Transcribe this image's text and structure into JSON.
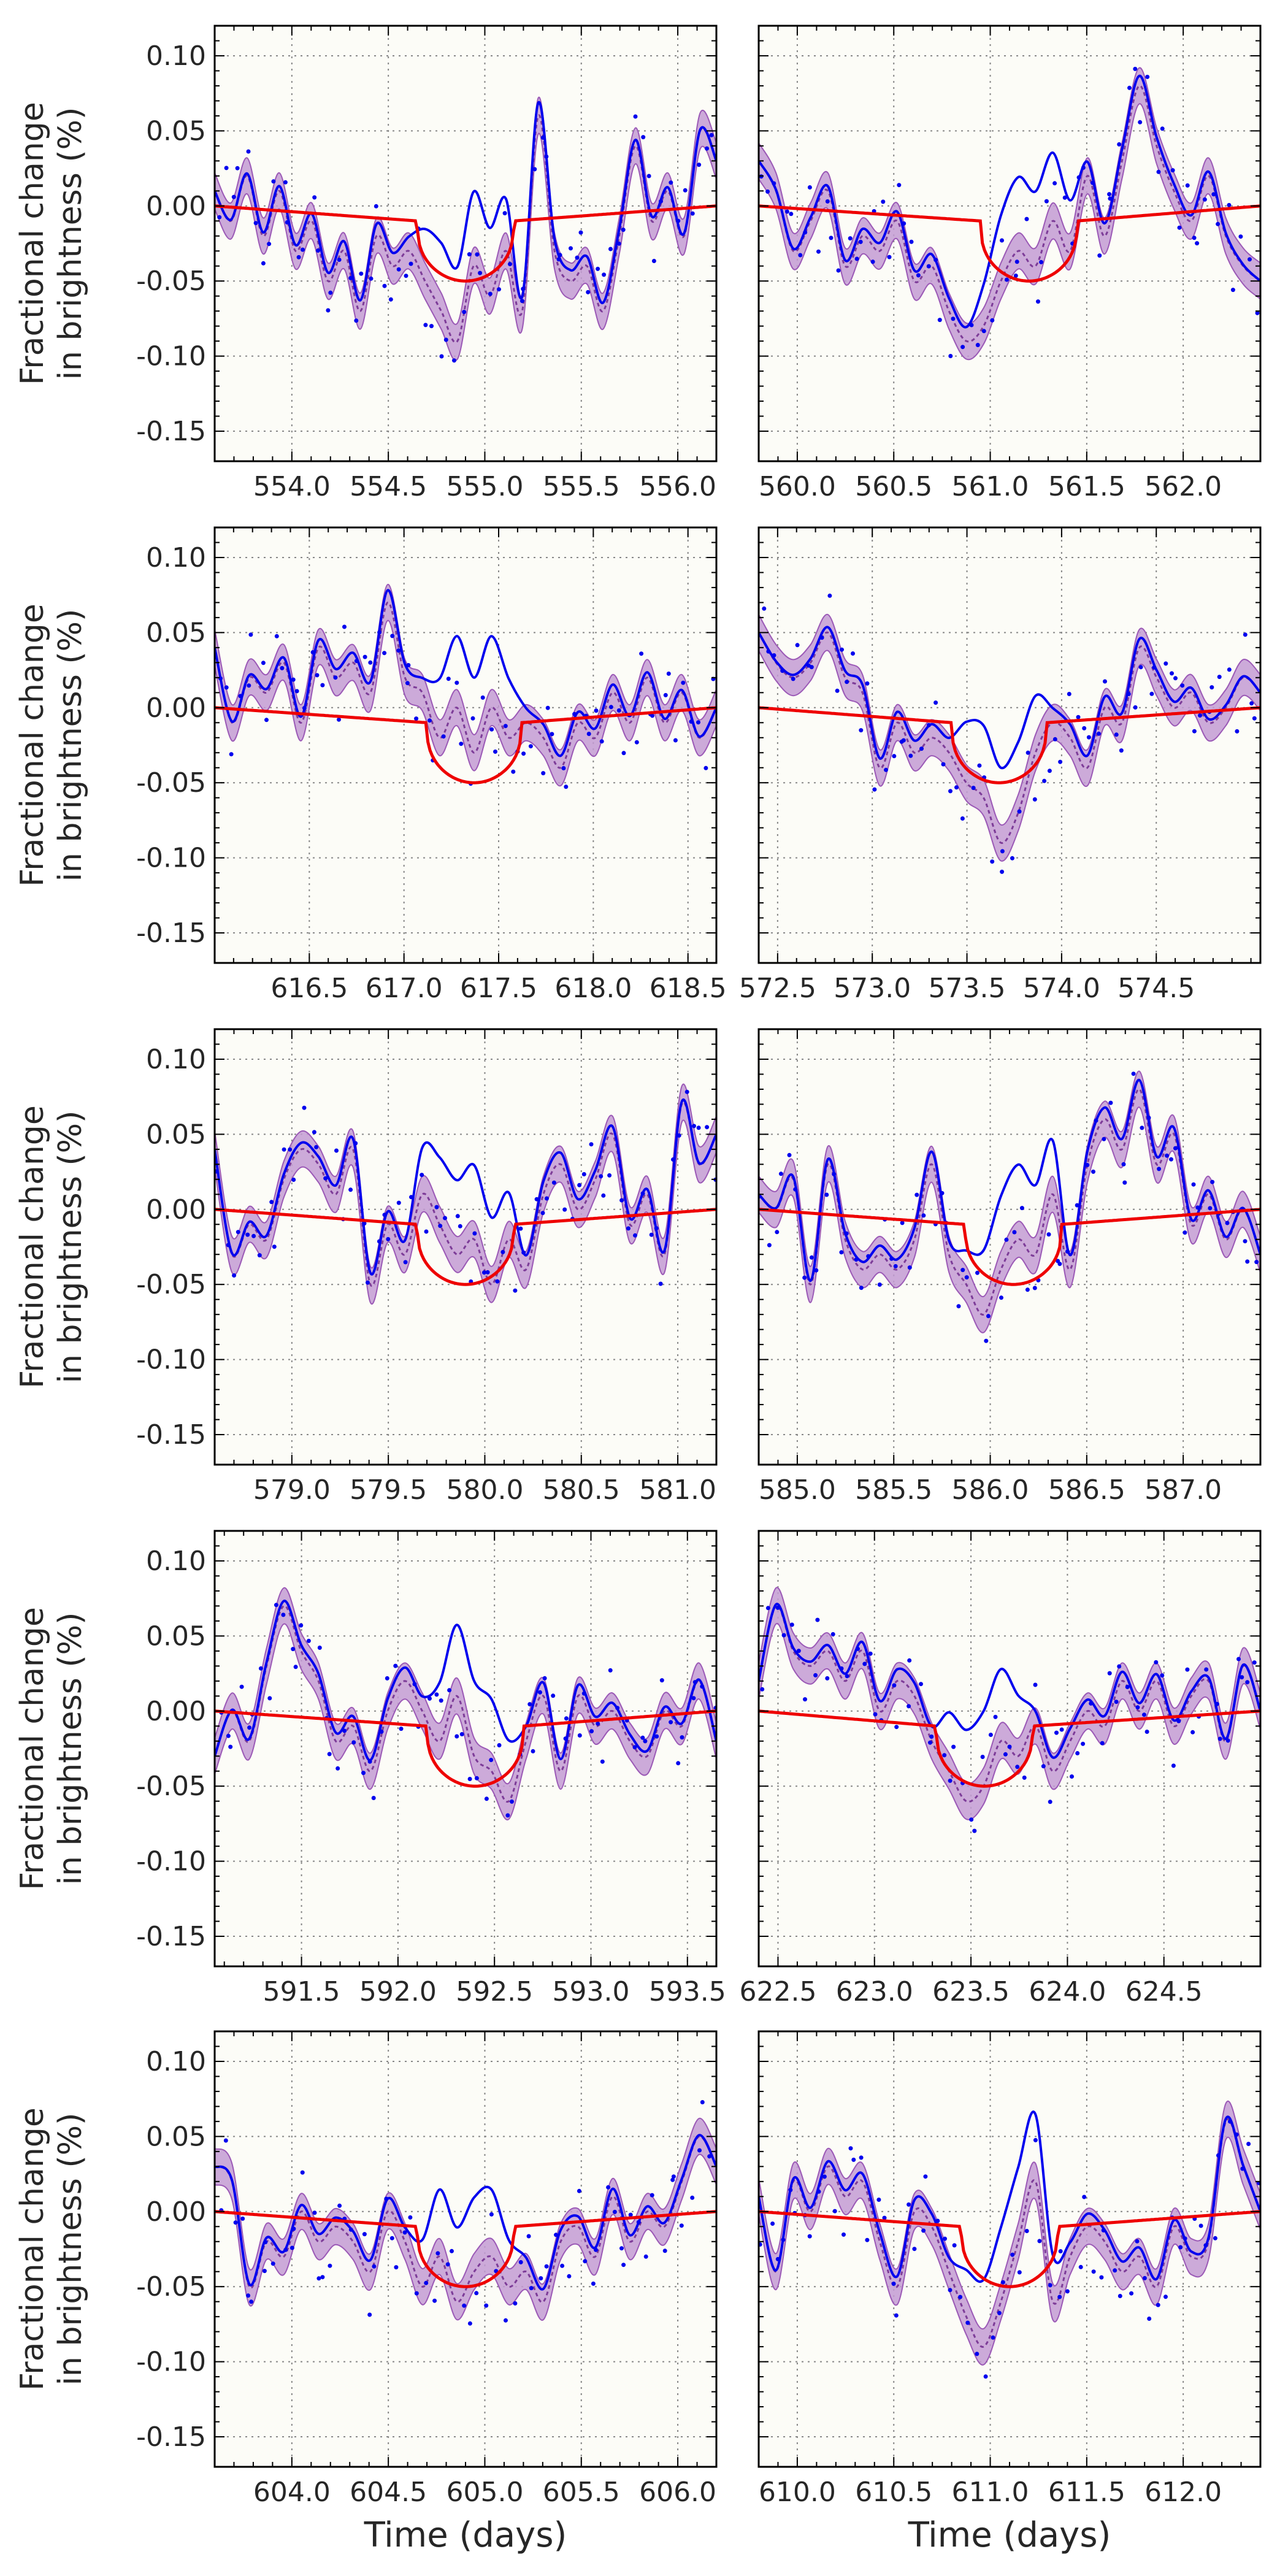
{
  "figure": {
    "ylabel_line1": "Fractional change",
    "ylabel_line2": "in brightness (%)",
    "xlabel": "Time (days)"
  },
  "colors": {
    "background": "#fcfcf7",
    "data": "#0000ee",
    "model": "#ee0000",
    "band_fill": "#c39bd3",
    "band_line": "#9b59b6",
    "grid": "#888888"
  },
  "chart_data": [
    {
      "type": "line",
      "xlim": [
        553.6,
        556.2
      ],
      "ylim": [
        -0.17,
        0.12
      ],
      "yticks": [
        0.1,
        0.05,
        0.0,
        -0.05,
        -0.1,
        -0.15
      ],
      "xticks": [
        554.0,
        554.5,
        555.0,
        555.5,
        556.0
      ],
      "xtick_labels": [
        "554.0",
        "554.5",
        "555.0",
        "555.5",
        "556.0"
      ],
      "transit": {
        "start": 554.65,
        "end": 555.15,
        "depth": -0.05,
        "baseline_start": 0.0,
        "baseline_end": -0.01,
        "baseline_tail": 0.0
      },
      "smooth_y": [
        0.01,
        -0.01,
        0.02,
        -0.02,
        0.01,
        -0.03,
        -0.01,
        -0.05,
        -0.03,
        -0.07,
        -0.02,
        -0.04,
        -0.03,
        -0.05,
        -0.07,
        -0.09,
        -0.04,
        -0.06,
        -0.03,
        -0.07,
        0.06,
        -0.03,
        -0.05,
        -0.04,
        -0.07,
        -0.02,
        0.04,
        -0.01,
        0.01,
        -0.02,
        0.05,
        0.03
      ]
    },
    {
      "type": "line",
      "xlim": [
        559.8,
        562.4
      ],
      "ylim": [
        -0.17,
        0.12
      ],
      "yticks": [
        0.1,
        0.05,
        0.0,
        -0.05,
        -0.1,
        -0.15
      ],
      "xticks": [
        560.0,
        560.5,
        561.0,
        561.5,
        562.0
      ],
      "xtick_labels": [
        "560.0",
        "560.5",
        "561.0",
        "561.5",
        "562.0"
      ],
      "transit": {
        "start": 560.95,
        "end": 561.45,
        "depth": -0.05,
        "baseline_start": 0.0,
        "baseline_end": -0.01,
        "baseline_tail": 0.0
      },
      "smooth_y": [
        0.03,
        0.01,
        -0.03,
        -0.01,
        0.01,
        -0.04,
        -0.02,
        -0.03,
        -0.01,
        -0.05,
        -0.04,
        -0.07,
        -0.09,
        -0.08,
        -0.05,
        -0.03,
        -0.04,
        -0.01,
        -0.03,
        0.02,
        -0.02,
        0.03,
        0.08,
        0.04,
        0.01,
        -0.01,
        0.02,
        -0.02,
        -0.04,
        -0.05
      ]
    },
    {
      "type": "line",
      "xlim": [
        616.0,
        618.65
      ],
      "ylim": [
        -0.17,
        0.12
      ],
      "yticks": [
        0.1,
        0.05,
        0.0,
        -0.05,
        -0.1,
        -0.15
      ],
      "xticks": [
        616.5,
        617.0,
        617.5,
        618.0,
        618.5
      ],
      "xtick_labels": [
        "616.5",
        "617.0",
        "617.5",
        "618.0",
        "618.5"
      ],
      "transit": {
        "start": 617.12,
        "end": 617.62,
        "depth": -0.05,
        "baseline_start": 0.0,
        "baseline_end": -0.01,
        "baseline_tail": 0.0
      },
      "smooth_y": [
        0.04,
        -0.01,
        0.02,
        0.01,
        0.03,
        -0.01,
        0.04,
        0.02,
        0.03,
        0.01,
        0.07,
        0.02,
        0.01,
        -0.02,
        0.0,
        -0.03,
        0.0,
        -0.02,
        -0.01,
        -0.02,
        -0.04,
        -0.01,
        -0.02,
        0.01,
        -0.01,
        0.02,
        -0.01,
        0.01,
        -0.02,
        0.0
      ]
    },
    {
      "type": "line",
      "xlim": [
        572.4,
        575.05
      ],
      "ylim": [
        -0.17,
        0.12
      ],
      "yticks": [
        0.1,
        0.05,
        0.0,
        -0.05,
        -0.1,
        -0.15
      ],
      "xticks": [
        572.5,
        573.0,
        573.5,
        574.0,
        574.5
      ],
      "xtick_labels": [
        "572.5",
        "573.0",
        "573.5",
        "574.0",
        "574.5"
      ],
      "transit": {
        "start": 573.42,
        "end": 573.92,
        "depth": -0.05,
        "baseline_start": 0.0,
        "baseline_end": -0.01,
        "baseline_tail": 0.0
      },
      "smooth_y": [
        0.05,
        0.03,
        0.02,
        0.03,
        0.05,
        0.02,
        0.01,
        -0.04,
        -0.01,
        -0.03,
        -0.02,
        -0.03,
        -0.05,
        -0.06,
        -0.09,
        -0.07,
        -0.03,
        -0.01,
        -0.02,
        -0.04,
        0.0,
        -0.01,
        0.04,
        0.02,
        0.0,
        0.01,
        -0.01,
        0.0,
        0.02,
        0.01
      ]
    },
    {
      "type": "line",
      "xlim": [
        578.6,
        581.2
      ],
      "ylim": [
        -0.17,
        0.12
      ],
      "yticks": [
        0.1,
        0.05,
        0.0,
        -0.05,
        -0.1,
        -0.15
      ],
      "xticks": [
        579.0,
        579.5,
        580.0,
        580.5,
        581.0
      ],
      "xtick_labels": [
        "579.0",
        "579.5",
        "580.0",
        "580.5",
        "581.0"
      ],
      "transit": {
        "start": 579.65,
        "end": 580.15,
        "depth": -0.05,
        "baseline_start": 0.0,
        "baseline_end": -0.01,
        "baseline_tail": 0.0
      },
      "smooth_y": [
        0.04,
        -0.03,
        -0.01,
        -0.02,
        0.02,
        0.04,
        0.03,
        0.01,
        0.04,
        -0.05,
        -0.01,
        -0.03,
        0.01,
        -0.01,
        -0.03,
        -0.02,
        -0.05,
        -0.02,
        -0.04,
        0.01,
        0.03,
        0.0,
        0.02,
        0.05,
        -0.01,
        0.01,
        -0.03,
        0.07,
        0.03,
        0.05
      ]
    },
    {
      "type": "line",
      "xlim": [
        584.8,
        587.4
      ],
      "ylim": [
        -0.17,
        0.12
      ],
      "yticks": [
        0.1,
        0.05,
        0.0,
        -0.05,
        -0.1,
        -0.15
      ],
      "xticks": [
        585.0,
        585.5,
        586.0,
        586.5,
        587.0
      ],
      "xtick_labels": [
        "585.0",
        "585.5",
        "586.0",
        "586.5",
        "587.0"
      ],
      "transit": {
        "start": 585.87,
        "end": 586.37,
        "depth": -0.05,
        "baseline_start": 0.0,
        "baseline_end": -0.01,
        "baseline_tail": 0.0
      },
      "smooth_y": [
        0.01,
        0.0,
        0.02,
        -0.05,
        0.03,
        -0.02,
        -0.04,
        -0.03,
        -0.04,
        -0.02,
        0.03,
        -0.03,
        -0.05,
        -0.07,
        -0.04,
        -0.02,
        -0.03,
        0.01,
        -0.04,
        0.03,
        0.06,
        0.04,
        0.08,
        0.03,
        0.05,
        -0.01,
        0.01,
        -0.02,
        0.0,
        -0.03
      ]
    },
    {
      "type": "line",
      "xlim": [
        591.05,
        593.65
      ],
      "ylim": [
        -0.17,
        0.12
      ],
      "yticks": [
        0.1,
        0.05,
        0.0,
        -0.05,
        -0.1,
        -0.15
      ],
      "xticks": [
        591.5,
        592.0,
        592.5,
        593.0,
        593.5
      ],
      "xtick_labels": [
        "591.5",
        "592.0",
        "592.5",
        "593.0",
        "593.5"
      ],
      "transit": {
        "start": 592.15,
        "end": 592.65,
        "depth": -0.05,
        "baseline_start": 0.0,
        "baseline_end": -0.01,
        "baseline_tail": 0.0
      },
      "smooth_y": [
        -0.03,
        0.0,
        -0.02,
        0.03,
        0.07,
        0.04,
        0.02,
        -0.02,
        -0.01,
        -0.04,
        0.0,
        0.02,
        0.0,
        -0.02,
        0.01,
        -0.03,
        -0.04,
        -0.06,
        -0.02,
        0.01,
        -0.04,
        0.01,
        -0.01,
        0.0,
        -0.02,
        -0.03,
        0.0,
        -0.01,
        0.02,
        -0.02
      ]
    },
    {
      "type": "line",
      "xlim": [
        622.4,
        625.0
      ],
      "ylim": [
        -0.17,
        0.12
      ],
      "yticks": [
        0.1,
        0.05,
        0.0,
        -0.05,
        -0.1,
        -0.15
      ],
      "xticks": [
        622.5,
        623.0,
        623.5,
        624.0,
        624.5
      ],
      "xtick_labels": [
        "622.5",
        "623.0",
        "623.5",
        "624.0",
        "624.5"
      ],
      "transit": {
        "start": 623.32,
        "end": 623.82,
        "depth": -0.05,
        "baseline_start": 0.0,
        "baseline_end": -0.01,
        "baseline_tail": 0.0
      },
      "smooth_y": [
        0.02,
        0.07,
        0.04,
        0.03,
        0.04,
        0.02,
        0.04,
        0.0,
        0.02,
        0.01,
        -0.02,
        -0.04,
        -0.06,
        -0.05,
        -0.02,
        -0.03,
        -0.01,
        -0.04,
        -0.02,
        0.0,
        -0.01,
        0.02,
        0.0,
        0.02,
        -0.01,
        0.01,
        0.02,
        -0.02,
        0.03,
        0.0
      ]
    },
    {
      "type": "line",
      "xlim": [
        603.6,
        606.2
      ],
      "ylim": [
        -0.17,
        0.12
      ],
      "yticks": [
        0.1,
        0.05,
        0.0,
        -0.05,
        -0.1,
        -0.15
      ],
      "xticks": [
        604.0,
        604.5,
        605.0,
        605.5,
        606.0
      ],
      "xtick_labels": [
        "604.0",
        "604.5",
        "605.0",
        "605.5",
        "606.0"
      ],
      "transit": {
        "start": 604.65,
        "end": 605.15,
        "depth": -0.05,
        "baseline_start": 0.0,
        "baseline_end": -0.01,
        "baseline_tail": 0.0
      },
      "smooth_y": [
        0.03,
        0.02,
        -0.05,
        -0.02,
        -0.03,
        0.0,
        -0.02,
        -0.01,
        -0.02,
        -0.04,
        0.0,
        -0.02,
        -0.05,
        -0.03,
        -0.06,
        -0.04,
        -0.03,
        -0.05,
        -0.04,
        -0.06,
        -0.02,
        -0.01,
        -0.03,
        0.01,
        -0.02,
        0.0,
        -0.01,
        0.02,
        0.05,
        0.03
      ]
    },
    {
      "type": "line",
      "xlim": [
        609.8,
        612.4
      ],
      "ylim": [
        -0.17,
        0.12
      ],
      "yticks": [
        0.1,
        0.05,
        0.0,
        -0.05,
        -0.1,
        -0.15
      ],
      "xticks": [
        610.0,
        610.5,
        611.0,
        611.5,
        612.0
      ],
      "xtick_labels": [
        "610.0",
        "610.5",
        "611.0",
        "611.5",
        "612.0"
      ],
      "transit": {
        "start": 610.85,
        "end": 611.35,
        "depth": -0.05,
        "baseline_start": 0.0,
        "baseline_end": -0.01,
        "baseline_tail": 0.0
      },
      "smooth_y": [
        0.01,
        -0.04,
        0.02,
        0.0,
        0.03,
        0.01,
        0.02,
        -0.02,
        -0.05,
        0.0,
        -0.01,
        -0.04,
        -0.07,
        -0.09,
        -0.06,
        -0.02,
        0.02,
        -0.06,
        -0.03,
        -0.01,
        -0.02,
        -0.04,
        -0.03,
        -0.05,
        -0.01,
        -0.03,
        -0.02,
        0.06,
        0.03,
        0.0
      ]
    }
  ]
}
